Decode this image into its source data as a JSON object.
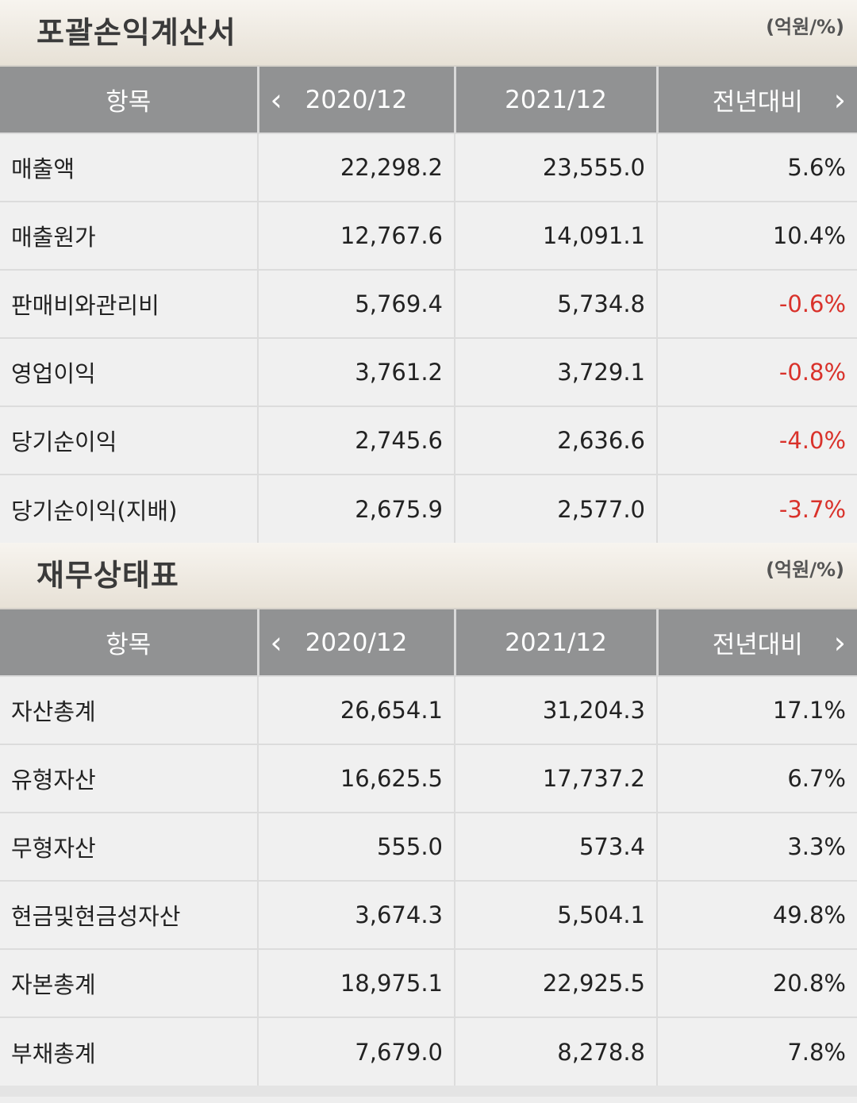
{
  "income": {
    "title": "포괄손익계산서",
    "unit": "(억원/%)",
    "headers": [
      "항목",
      "2020/12",
      "2021/12",
      "전년대비"
    ],
    "rows": [
      {
        "item": "매출액",
        "y2020": "22,298.2",
        "y2021": "23,555.0",
        "yoy": "5.6%",
        "neg": false
      },
      {
        "item": "매출원가",
        "y2020": "12,767.6",
        "y2021": "14,091.1",
        "yoy": "10.4%",
        "neg": false
      },
      {
        "item": "판매비와관리비",
        "y2020": "5,769.4",
        "y2021": "5,734.8",
        "yoy": "-0.6%",
        "neg": true
      },
      {
        "item": "영업이익",
        "y2020": "3,761.2",
        "y2021": "3,729.1",
        "yoy": "-0.8%",
        "neg": true
      },
      {
        "item": "당기순이익",
        "y2020": "2,745.6",
        "y2021": "2,636.6",
        "yoy": "-4.0%",
        "neg": true
      },
      {
        "item": "당기순이익(지배)",
        "y2020": "2,675.9",
        "y2021": "2,577.0",
        "yoy": "-3.7%",
        "neg": true
      }
    ]
  },
  "balance": {
    "title": "재무상태표",
    "unit": "(억원/%)",
    "headers": [
      "항목",
      "2020/12",
      "2021/12",
      "전년대비"
    ],
    "rows": [
      {
        "item": "자산총계",
        "y2020": "26,654.1",
        "y2021": "31,204.3",
        "yoy": "17.1%",
        "neg": false
      },
      {
        "item": "유형자산",
        "y2020": "16,625.5",
        "y2021": "17,737.2",
        "yoy": "6.7%",
        "neg": false
      },
      {
        "item": "무형자산",
        "y2020": "555.0",
        "y2021": "573.4",
        "yoy": "3.3%",
        "neg": false
      },
      {
        "item": "현금및현금성자산",
        "y2020": "3,674.3",
        "y2021": "5,504.1",
        "yoy": "49.8%",
        "neg": false
      },
      {
        "item": "자본총계",
        "y2020": "18,975.1",
        "y2021": "22,925.5",
        "yoy": "20.8%",
        "neg": false
      },
      {
        "item": "부채총계",
        "y2020": "7,679.0",
        "y2021": "8,278.8",
        "yoy": "7.8%",
        "neg": false
      }
    ]
  },
  "colors": {
    "header_bg": "#919293",
    "negative": "#d9322b",
    "row_bg": "#f0f0f0"
  },
  "icons": {
    "prev": "chevron-left-icon",
    "next": "chevron-right-icon"
  }
}
